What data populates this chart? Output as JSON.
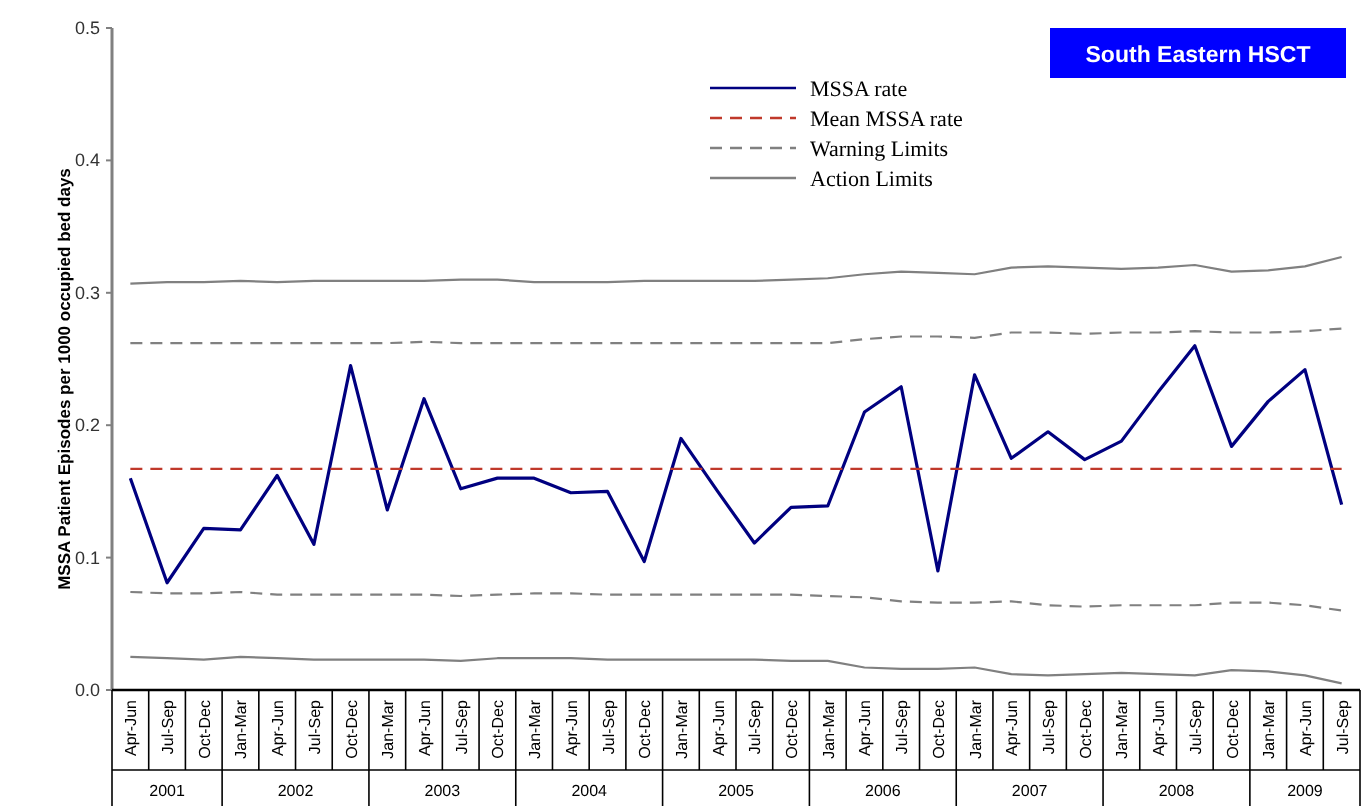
{
  "chart_data": {
    "type": "line",
    "title": "South Eastern HSCT",
    "ylabel": "MSSA Patient Episodes per 1000 occupied bed days",
    "categories": [
      "Apr-Jun",
      "Jul-Sep",
      "Oct-Dec",
      "Jan-Mar",
      "Apr-Jun",
      "Jul-Sep",
      "Oct-Dec",
      "Jan-Mar",
      "Apr-Jun",
      "Jul-Sep",
      "Oct-Dec",
      "Jan-Mar",
      "Apr-Jun",
      "Jul-Sep",
      "Oct-Dec",
      "Jan-Mar",
      "Apr-Jun",
      "Jul-Sep",
      "Oct-Dec",
      "Jan-Mar",
      "Apr-Jun",
      "Jul-Sep",
      "Oct-Dec",
      "Jan-Mar",
      "Apr-Jun",
      "Jul-Sep",
      "Oct-Dec",
      "Jan-Mar",
      "Apr-Jun",
      "Jul-Sep",
      "Oct-Dec",
      "Jan-Mar",
      "Apr-Jun",
      "Jul-Sep"
    ],
    "annotations": [
      "2001",
      "2002",
      "2003",
      "2004",
      "2005",
      "2006",
      "2007",
      "2008",
      "2009"
    ],
    "series": [
      {
        "name": "MSSA rate",
        "color": "#000080",
        "line_style": "solid",
        "values": [
          0.16,
          0.081,
          0.122,
          0.121,
          0.162,
          0.11,
          0.245,
          0.136,
          0.22,
          0.152,
          0.16,
          0.16,
          0.149,
          0.15,
          0.097,
          0.19,
          0.15,
          0.111,
          0.138,
          0.139,
          0.21,
          0.229,
          0.09,
          0.238,
          0.175,
          0.195,
          0.174,
          0.188,
          0.225,
          0.26,
          0.184,
          0.218,
          0.242,
          0.14
        ]
      },
      {
        "name": "Mean MSSA rate",
        "color": "#c0392b",
        "line_style": "dashed",
        "values": [
          0.167,
          0.167,
          0.167,
          0.167,
          0.167,
          0.167,
          0.167,
          0.167,
          0.167,
          0.167,
          0.167,
          0.167,
          0.167,
          0.167,
          0.167,
          0.167,
          0.167,
          0.167,
          0.167,
          0.167,
          0.167,
          0.167,
          0.167,
          0.167,
          0.167,
          0.167,
          0.167,
          0.167,
          0.167,
          0.167,
          0.167,
          0.167,
          0.167,
          0.167
        ]
      },
      {
        "name": "Warning Limits",
        "color": "#808080",
        "line_style": "dashed",
        "values": [
          0.262,
          0.262,
          0.262,
          0.262,
          0.262,
          0.262,
          0.262,
          0.262,
          0.263,
          0.262,
          0.262,
          0.262,
          0.262,
          0.262,
          0.262,
          0.262,
          0.262,
          0.262,
          0.262,
          0.262,
          0.265,
          0.267,
          0.267,
          0.266,
          0.27,
          0.27,
          0.269,
          0.27,
          0.27,
          0.271,
          0.27,
          0.27,
          0.271,
          0.273
        ]
      },
      {
        "color": "#808080",
        "line_style": "dashed",
        "values": [
          0.074,
          0.073,
          0.073,
          0.074,
          0.072,
          0.072,
          0.072,
          0.072,
          0.072,
          0.071,
          0.072,
          0.073,
          0.073,
          0.072,
          0.072,
          0.072,
          0.072,
          0.072,
          0.072,
          0.071,
          0.07,
          0.067,
          0.066,
          0.066,
          0.067,
          0.064,
          0.063,
          0.064,
          0.064,
          0.064,
          0.066,
          0.066,
          0.064,
          0.06
        ]
      },
      {
        "name": "Action Limits",
        "color": "#808080",
        "line_style": "solid",
        "values": [
          0.307,
          0.308,
          0.308,
          0.309,
          0.308,
          0.309,
          0.309,
          0.309,
          0.309,
          0.31,
          0.31,
          0.308,
          0.308,
          0.308,
          0.309,
          0.309,
          0.309,
          0.309,
          0.31,
          0.311,
          0.314,
          0.316,
          0.315,
          0.314,
          0.319,
          0.32,
          0.319,
          0.318,
          0.319,
          0.321,
          0.316,
          0.317,
          0.32,
          0.327
        ]
      },
      {
        "color": "#808080",
        "line_style": "solid",
        "values": [
          0.025,
          0.024,
          0.023,
          0.025,
          0.024,
          0.023,
          0.023,
          0.023,
          0.023,
          0.022,
          0.024,
          0.024,
          0.024,
          0.023,
          0.023,
          0.023,
          0.023,
          0.023,
          0.022,
          0.022,
          0.017,
          0.016,
          0.016,
          0.017,
          0.012,
          0.011,
          0.012,
          0.013,
          0.012,
          0.011,
          0.015,
          0.014,
          0.011,
          0.005
        ]
      }
    ],
    "ylim": [
      0,
      0.5
    ],
    "yticks": [
      {
        "value": 0,
        "label": "0.0"
      },
      0.1,
      0.2,
      0.3,
      0.4,
      0.5
    ],
    "grid": false,
    "legend": "top",
    "marker": "none"
  }
}
